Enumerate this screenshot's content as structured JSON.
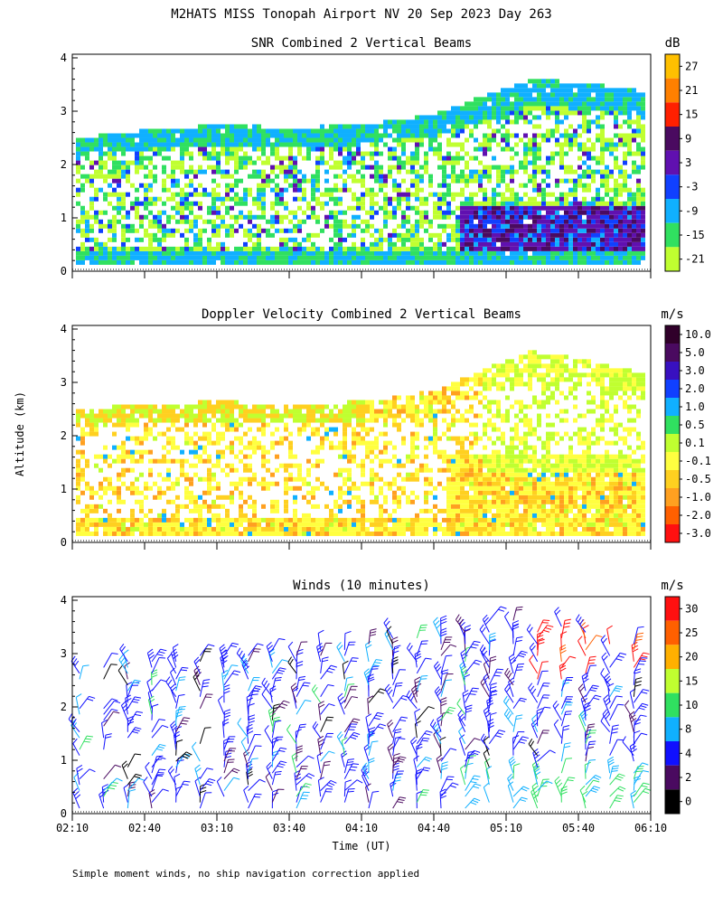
{
  "title": "M2HATS MISS Tonopah Airport NV  20 Sep 2023 Day 263",
  "footnote": "Simple moment winds, no ship navigation correction applied",
  "ylabel": "Altitude (km)",
  "xlabel": "Time (UT)",
  "x_tick_labels": [
    "02:10",
    "02:40",
    "03:10",
    "03:40",
    "04:10",
    "04:40",
    "05:10",
    "05:40",
    "06:10"
  ],
  "y_tick_labels": [
    "0",
    "1",
    "2",
    "3",
    "4"
  ],
  "chart_data": [
    {
      "type": "heatmap",
      "title": "SNR Combined 2 Vertical Beams",
      "unit": "dB",
      "x_range": [
        "02:10",
        "06:10"
      ],
      "ylim": [
        0,
        4
      ],
      "colorbar": {
        "labels": [
          "27",
          "21",
          "15",
          "9",
          "3",
          "-3",
          "-9",
          "-15",
          "-21"
        ],
        "colors": [
          "#ffc000",
          "#ff8000",
          "#ff2000",
          "#4a0a60",
          "#6010b0",
          "#1040ff",
          "#10b0ff",
          "#30e060",
          "#c0ff30"
        ]
      },
      "signal_top_km": [
        [
          "02:10",
          2.45
        ],
        [
          "02:40",
          2.6
        ],
        [
          "03:10",
          2.7
        ],
        [
          "03:40",
          2.65
        ],
        [
          "04:10",
          2.7
        ],
        [
          "04:40",
          2.9
        ],
        [
          "05:00",
          3.25
        ],
        [
          "05:20",
          3.55
        ],
        [
          "05:40",
          3.5
        ],
        [
          "06:10",
          3.3
        ]
      ]
    },
    {
      "type": "heatmap",
      "title": "Doppler Velocity Combined 2 Vertical Beams",
      "unit": "m/s",
      "x_range": [
        "02:10",
        "06:10"
      ],
      "ylim": [
        0,
        4
      ],
      "colorbar": {
        "labels": [
          "10.0",
          "5.0",
          "3.0",
          "2.0",
          "1.0",
          "0.5",
          "0.1",
          "-0.1",
          "-0.5",
          "-1.0",
          "-2.0",
          "-3.0"
        ],
        "colors": [
          "#30002a",
          "#4a0a60",
          "#3810c0",
          "#1040ff",
          "#10b0ff",
          "#30e060",
          "#c0ff30",
          "#ffff40",
          "#ffd020",
          "#ffa020",
          "#ff6000",
          "#ff1010"
        ]
      },
      "signal_top_km": [
        [
          "02:10",
          2.45
        ],
        [
          "02:40",
          2.55
        ],
        [
          "03:10",
          2.6
        ],
        [
          "03:40",
          2.55
        ],
        [
          "04:10",
          2.6
        ],
        [
          "04:40",
          2.8
        ],
        [
          "05:00",
          3.2
        ],
        [
          "05:20",
          3.55
        ],
        [
          "05:40",
          3.4
        ],
        [
          "06:10",
          3.1
        ]
      ]
    },
    {
      "type": "scatter",
      "title": "Winds (10 minutes)",
      "unit": "m/s",
      "x_range": [
        "02:10",
        "06:10"
      ],
      "ylim": [
        0,
        4
      ],
      "colorbar": {
        "labels": [
          "30",
          "25",
          "20",
          "15",
          "10",
          "8",
          "4",
          "2",
          "0"
        ],
        "colors": [
          "#ff1010",
          "#ff6000",
          "#ffb000",
          "#c0ff30",
          "#30e060",
          "#10b0ff",
          "#1010ff",
          "#4a0a60",
          "#000000"
        ]
      }
    }
  ]
}
